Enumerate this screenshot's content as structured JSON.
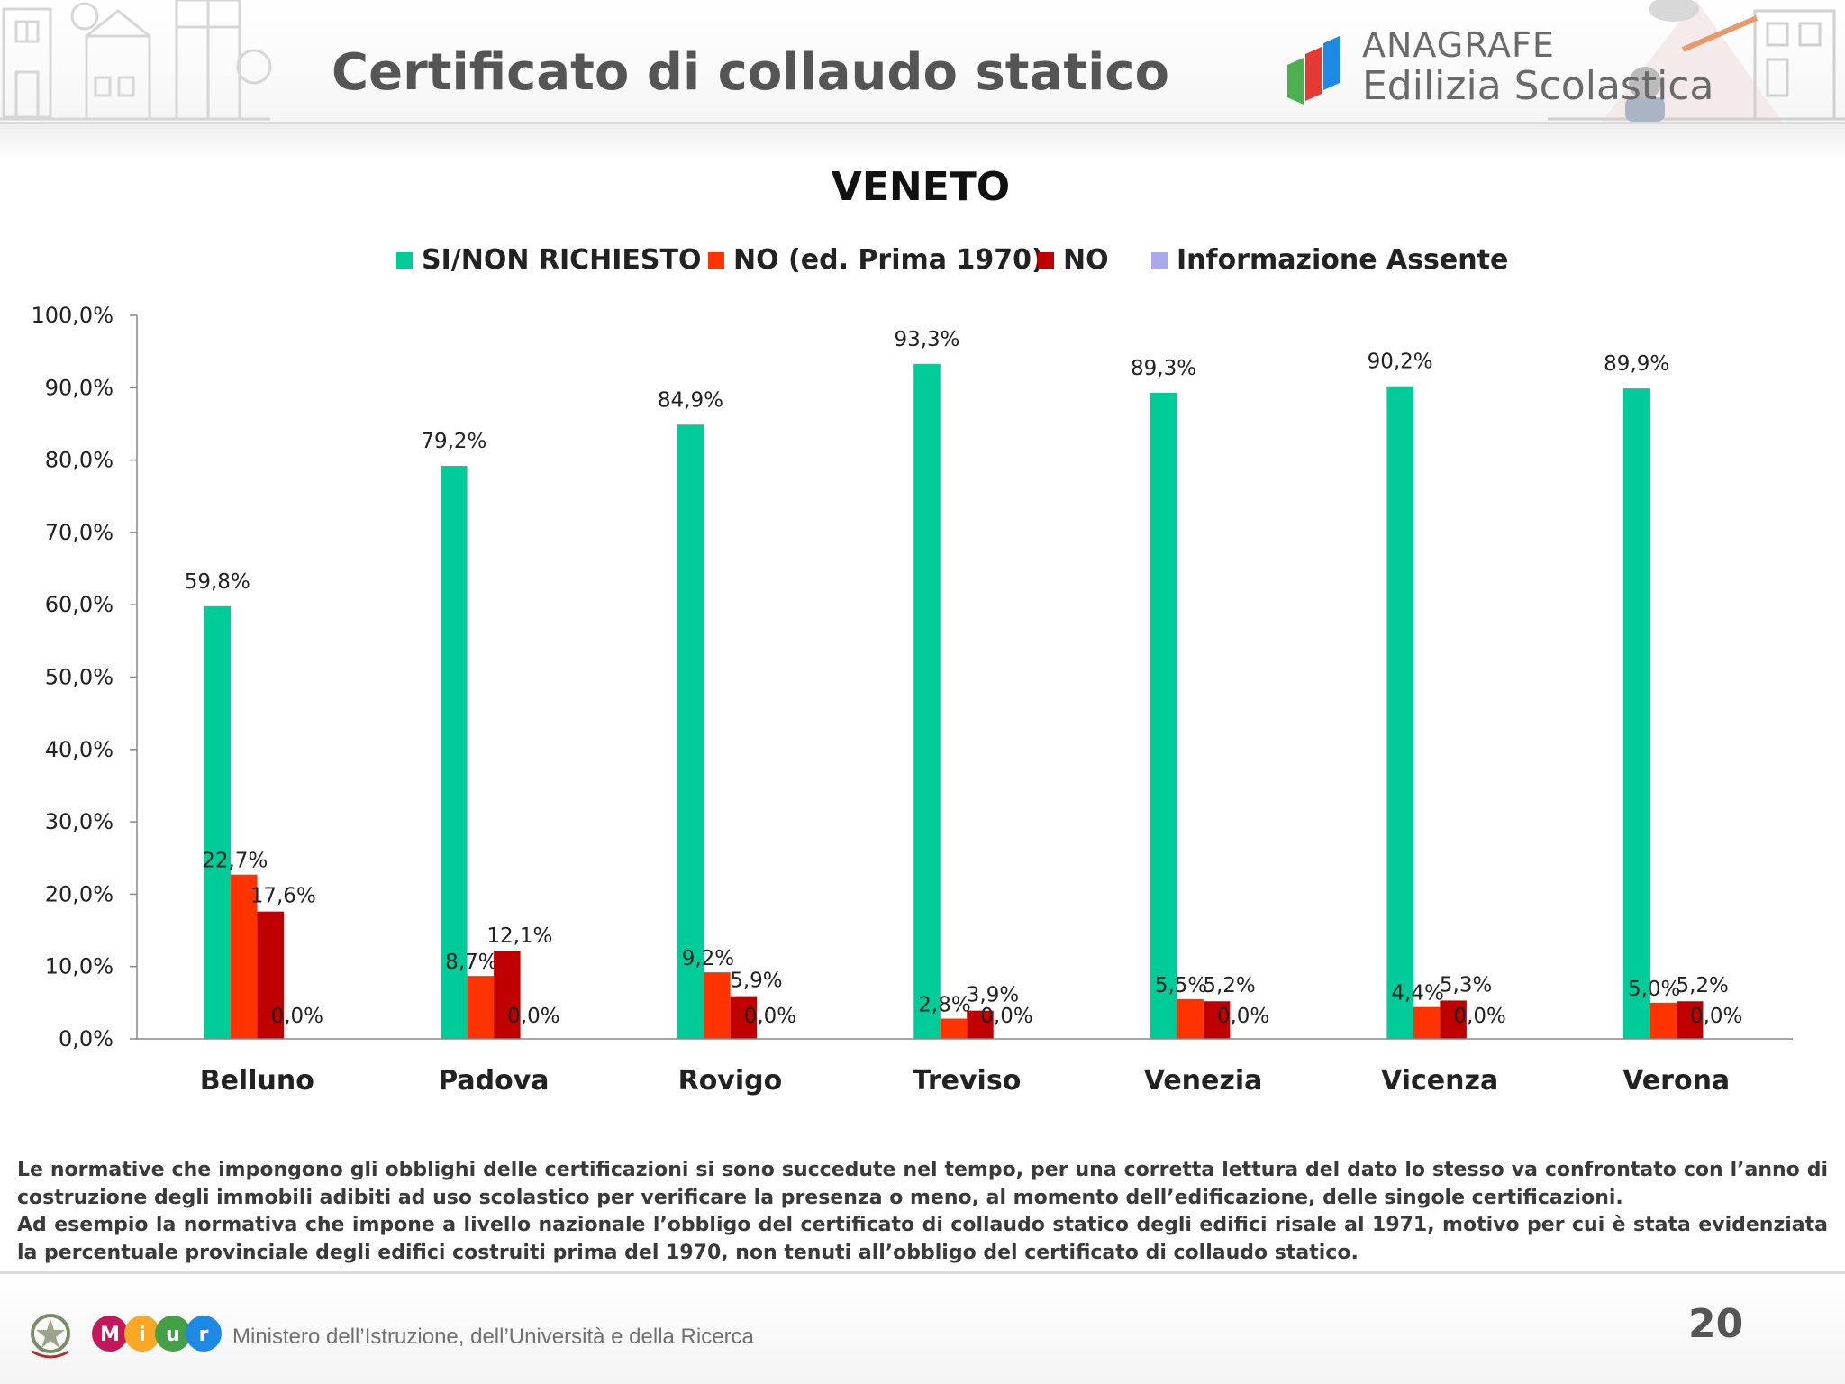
{
  "header": {
    "title": "Certificato di collaudo statico",
    "logo_line1": "ANAGRAFE",
    "logo_line2": "Edilizia Scolastica"
  },
  "chart_data": {
    "type": "bar",
    "title": "VENETO",
    "categories": [
      "Belluno",
      "Padova",
      "Rovigo",
      "Treviso",
      "Venezia",
      "Vicenza",
      "Verona"
    ],
    "series": [
      {
        "name": "SI/NON RICHIESTO",
        "color": "#00cc99",
        "values": [
          59.8,
          79.2,
          84.9,
          93.3,
          89.3,
          90.2,
          89.9
        ],
        "labels": [
          "59,8%",
          "79,2%",
          "84,9%",
          "93,3%",
          "89,3%",
          "90,2%",
          "89,9%"
        ]
      },
      {
        "name": "NO (ed. Prima 1970)",
        "color": "#ff3300",
        "values": [
          22.7,
          8.7,
          9.2,
          2.8,
          5.5,
          4.4,
          5.0
        ],
        "labels": [
          "22,7%",
          "8,7%",
          "9,2%",
          "2,8%",
          "5,5%",
          "4,4%",
          "5,0%"
        ]
      },
      {
        "name": "NO",
        "color": "#c00000",
        "values": [
          17.6,
          12.1,
          5.9,
          3.9,
          5.2,
          5.3,
          5.2
        ],
        "labels": [
          "17,6%",
          "12,1%",
          "5,9%",
          "3,9%",
          "5,2%",
          "5,3%",
          "5,2%"
        ]
      },
      {
        "name": "Informazione Assente",
        "color": "#a9a9f0",
        "values": [
          0,
          0,
          0,
          0,
          0,
          0,
          0
        ],
        "labels": [
          "0,0%",
          "0,0%",
          "0,0%",
          "0,0%",
          "0,0%",
          "0,0%",
          "0,0%"
        ]
      }
    ],
    "y_ticks": [
      "0,0%",
      "10,0%",
      "20,0%",
      "30,0%",
      "40,0%",
      "50,0%",
      "60,0%",
      "70,0%",
      "80,0%",
      "90,0%",
      "100,0%"
    ],
    "ylim": [
      0,
      100
    ],
    "legend_position": "top-center",
    "grid": false
  },
  "footnote": {
    "paragraph1": "Le normative che impongono gli obblighi delle certificazioni si sono succedute nel tempo, per una corretta lettura del dato lo stesso va confrontato con l’anno di costruzione degli immobili adibiti ad uso scolastico per verificare la presenza o meno, al momento dell’edificazione, delle singole certificazioni.",
    "paragraph2": "Ad esempio la normativa che impone a livello nazionale l’obbligo del certificato di collaudo statico degli edifici risale al 1971, motivo per cui è stata evidenziata la percentuale provinciale degli edifici costruiti prima del 1970, non tenuti all’obbligo del certificato di collaudo statico."
  },
  "footer": {
    "ministry": "Ministero dell’Istruzione, dell’Università e della Ricerca",
    "miur_letters": [
      "M",
      "i",
      "u",
      "r"
    ],
    "page_number": "20"
  }
}
